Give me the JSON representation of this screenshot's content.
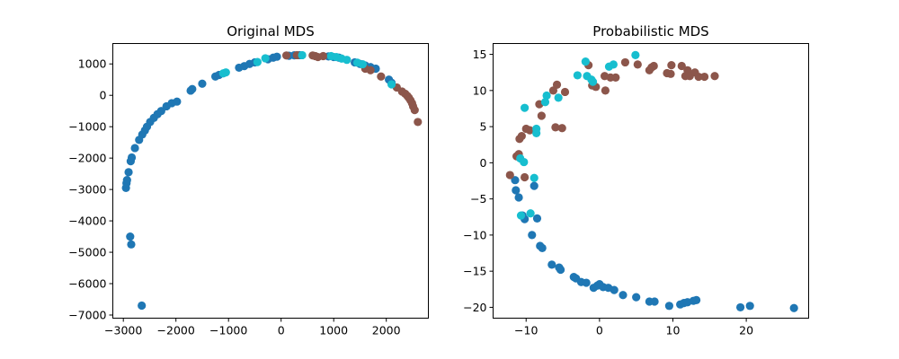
{
  "colors": {
    "blue": "#1f77b4",
    "brown": "#8c564b",
    "cyan": "#17becf"
  },
  "chart_data": [
    {
      "type": "scatter",
      "title": "Original MDS",
      "xlabel": "",
      "ylabel": "",
      "xlim": [
        -3200,
        2800
      ],
      "ylim": [
        -7100,
        1650
      ],
      "xticks": [
        -3000,
        -2000,
        -1000,
        0,
        1000,
        2000
      ],
      "xtick_labels": [
        "−3000",
        "−2000",
        "−1000",
        "0",
        "1000",
        "2000"
      ],
      "yticks": [
        1000,
        0,
        -1000,
        -2000,
        -3000,
        -4000,
        -5000,
        -6000,
        -7000
      ],
      "ytick_labels": [
        "1000",
        "0",
        "−1000",
        "−2000",
        "−3000",
        "−4000",
        "−5000",
        "−6000",
        "−7000"
      ],
      "grid": false,
      "legend": "none",
      "series": [
        {
          "color": "blue",
          "points": [
            [
              -2650,
              -6700
            ],
            [
              -2850,
              -4750
            ],
            [
              -2870,
              -4500
            ],
            [
              -2950,
              -2950
            ],
            [
              -2940,
              -2800
            ],
            [
              -2930,
              -2700
            ],
            [
              -2900,
              -2450
            ],
            [
              -2860,
              -2100
            ],
            [
              -2840,
              -1980
            ],
            [
              -2780,
              -1680
            ],
            [
              -2700,
              -1420
            ],
            [
              -2640,
              -1250
            ],
            [
              -2590,
              -1120
            ],
            [
              -2550,
              -1000
            ],
            [
              -2490,
              -850
            ],
            [
              -2420,
              -720
            ],
            [
              -2350,
              -600
            ],
            [
              -2280,
              -500
            ],
            [
              -2180,
              -350
            ],
            [
              -2080,
              -250
            ],
            [
              -1980,
              -200
            ],
            [
              -1720,
              150
            ],
            [
              -1690,
              200
            ],
            [
              -1500,
              370
            ],
            [
              -1250,
              600
            ],
            [
              -1180,
              650
            ],
            [
              -800,
              880
            ],
            [
              -700,
              930
            ],
            [
              -600,
              1000
            ],
            [
              -500,
              1050
            ],
            [
              -250,
              1150
            ],
            [
              -150,
              1200
            ],
            [
              -80,
              1230
            ],
            [
              150,
              1260
            ],
            [
              250,
              1275
            ],
            [
              350,
              1280
            ],
            [
              900,
              1240
            ],
            [
              1000,
              1220
            ],
            [
              1100,
              1200
            ],
            [
              1400,
              1050
            ],
            [
              1500,
              1000
            ],
            [
              1600,
              950
            ],
            [
              1700,
              900
            ],
            [
              1800,
              850
            ],
            [
              2050,
              500
            ],
            [
              2100,
              400
            ]
          ]
        },
        {
          "color": "brown",
          "points": [
            [
              100,
              1270
            ],
            [
              300,
              1280
            ],
            [
              600,
              1270
            ],
            [
              650,
              1250
            ],
            [
              700,
              1220
            ],
            [
              800,
              1250
            ],
            [
              1600,
              850
            ],
            [
              1700,
              800
            ],
            [
              1900,
              600
            ],
            [
              2200,
              250
            ],
            [
              2300,
              120
            ],
            [
              2360,
              50
            ],
            [
              2400,
              -20
            ],
            [
              2430,
              -80
            ],
            [
              2460,
              -160
            ],
            [
              2490,
              -250
            ],
            [
              2510,
              -350
            ],
            [
              2540,
              -470
            ],
            [
              2600,
              -850
            ]
          ]
        },
        {
          "color": "cyan",
          "points": [
            [
              -1100,
              700
            ],
            [
              -1050,
              730
            ],
            [
              -450,
              1060
            ],
            [
              -300,
              1180
            ],
            [
              400,
              1280
            ],
            [
              950,
              1250
            ],
            [
              1050,
              1220
            ],
            [
              1150,
              1170
            ],
            [
              1250,
              1130
            ],
            [
              1450,
              1040
            ],
            [
              1550,
              990
            ],
            [
              2100,
              350
            ]
          ]
        }
      ]
    },
    {
      "type": "scatter",
      "title": "Probabilistic MDS",
      "xlabel": "",
      "ylabel": "",
      "xlim": [
        -14.5,
        28.5
      ],
      "ylim": [
        -21.5,
        16.5
      ],
      "xticks": [
        -10,
        0,
        10,
        20
      ],
      "xtick_labels": [
        "−10",
        "0",
        "10",
        "20"
      ],
      "yticks": [
        15,
        10,
        5,
        0,
        -5,
        -10,
        -15,
        -20
      ],
      "ytick_labels": [
        "15",
        "10",
        "5",
        "0",
        "−5",
        "−10",
        "−15",
        "−20"
      ],
      "grid": false,
      "legend": "none",
      "series": [
        {
          "color": "blue",
          "points": [
            [
              -11.5,
              -2.4
            ],
            [
              -11.4,
              -3.8
            ],
            [
              -11.0,
              -4.8
            ],
            [
              -10.5,
              -7.3
            ],
            [
              -10.2,
              -7.8
            ],
            [
              -9.2,
              -10.0
            ],
            [
              -8.9,
              -3.2
            ],
            [
              -8.5,
              -7.7
            ],
            [
              -8.1,
              -11.5
            ],
            [
              -7.8,
              -11.8
            ],
            [
              -6.5,
              -14.1
            ],
            [
              -5.5,
              -14.5
            ],
            [
              -5.3,
              -14.8
            ],
            [
              -3.5,
              -15.8
            ],
            [
              -3.2,
              -16.0
            ],
            [
              -2.5,
              -16.5
            ],
            [
              -1.8,
              -16.6
            ],
            [
              -0.8,
              -17.3
            ],
            [
              -0.3,
              -17.0
            ],
            [
              0.0,
              -16.8
            ],
            [
              0.5,
              -17.2
            ],
            [
              1.2,
              -17.3
            ],
            [
              2.0,
              -17.6
            ],
            [
              3.2,
              -18.3
            ],
            [
              5.0,
              -18.6
            ],
            [
              6.8,
              -19.2
            ],
            [
              7.5,
              -19.2
            ],
            [
              9.5,
              -19.8
            ],
            [
              11.0,
              -19.6
            ],
            [
              11.5,
              -19.4
            ],
            [
              12.0,
              -19.3
            ],
            [
              12.8,
              -19.1
            ],
            [
              13.2,
              -19.0
            ],
            [
              19.2,
              -20.0
            ],
            [
              20.5,
              -19.8
            ],
            [
              26.5,
              -20.1
            ]
          ]
        },
        {
          "color": "brown",
          "points": [
            [
              -12.2,
              -1.7
            ],
            [
              -11.3,
              0.9
            ],
            [
              -11.0,
              1.2
            ],
            [
              -10.9,
              3.3
            ],
            [
              -10.6,
              3.7
            ],
            [
              -10.0,
              4.7
            ],
            [
              -10.2,
              -2.0
            ],
            [
              -9.5,
              4.5
            ],
            [
              -8.2,
              8.1
            ],
            [
              -7.9,
              6.5
            ],
            [
              -6.3,
              10.0
            ],
            [
              -6.0,
              4.9
            ],
            [
              -5.8,
              10.8
            ],
            [
              -5.1,
              4.8
            ],
            [
              -4.7,
              9.8
            ],
            [
              -1.5,
              13.5
            ],
            [
              -1.0,
              10.7
            ],
            [
              -0.5,
              10.5
            ],
            [
              0.8,
              10.0
            ],
            [
              0.7,
              12.0
            ],
            [
              1.5,
              11.8
            ],
            [
              2.2,
              11.8
            ],
            [
              3.5,
              13.9
            ],
            [
              5.2,
              13.6
            ],
            [
              6.8,
              12.8
            ],
            [
              7.1,
              13.2
            ],
            [
              7.4,
              13.4
            ],
            [
              9.2,
              12.4
            ],
            [
              9.7,
              12.3
            ],
            [
              9.8,
              13.5
            ],
            [
              11.2,
              13.4
            ],
            [
              11.7,
              12.0
            ],
            [
              12.0,
              12.8
            ],
            [
              12.3,
              12.0
            ],
            [
              13.0,
              12.5
            ],
            [
              13.5,
              11.9
            ],
            [
              14.3,
              11.9
            ],
            [
              15.7,
              12.0
            ]
          ]
        },
        {
          "color": "cyan",
          "points": [
            [
              -10.8,
              0.6
            ],
            [
              -10.3,
              0.1
            ],
            [
              -10.7,
              -7.3
            ],
            [
              -10.2,
              7.6
            ],
            [
              -9.4,
              -7.0
            ],
            [
              -8.9,
              -2.1
            ],
            [
              -8.6,
              4.1
            ],
            [
              -8.6,
              4.7
            ],
            [
              -7.2,
              9.3
            ],
            [
              -7.4,
              8.4
            ],
            [
              -5.6,
              9.0
            ],
            [
              -3.0,
              12.1
            ],
            [
              -1.9,
              14.0
            ],
            [
              -1.7,
              12.0
            ],
            [
              -1.1,
              11.5
            ],
            [
              -0.9,
              11.2
            ],
            [
              1.3,
              13.3
            ],
            [
              1.9,
              13.6
            ],
            [
              4.9,
              14.9
            ]
          ]
        }
      ]
    }
  ]
}
